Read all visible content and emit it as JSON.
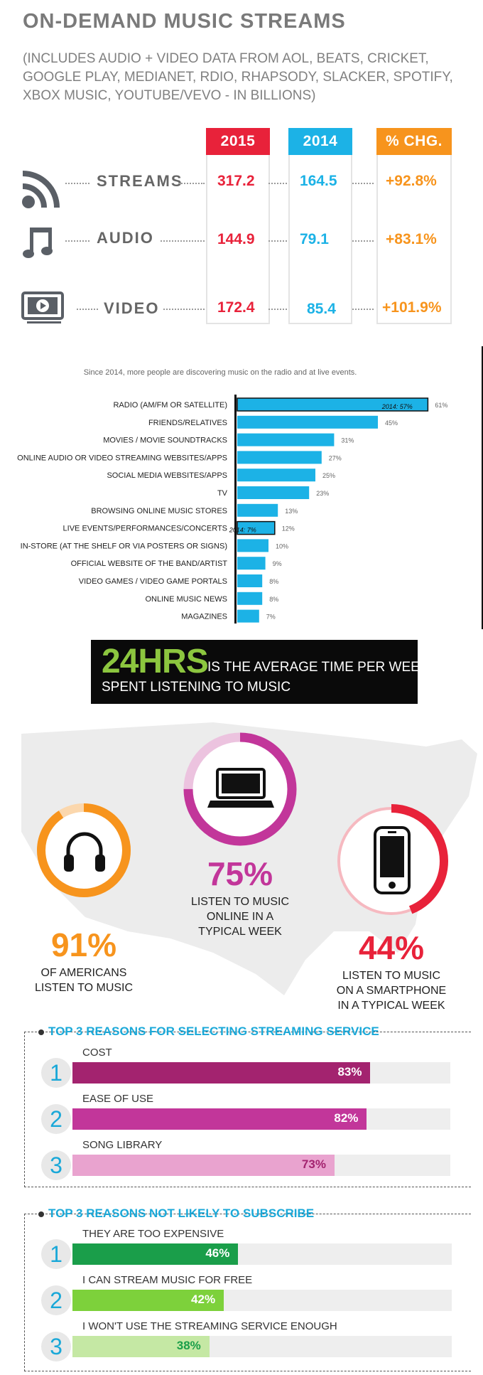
{
  "streams": {
    "title": "ON-DEMAND MUSIC STREAMS",
    "subtitle": "(INCLUDES AUDIO + VIDEO DATA FROM AOL, BEATS, CRICKET, GOOGLE PLAY, MEDIANET, RDIO, RHAPSODY, SLACKER, SPOTIFY, XBOX MUSIC, YOUTUBE/VEVO - IN BILLIONS)",
    "columns": [
      {
        "label": "2015",
        "color": "#e8223a"
      },
      {
        "label": "2014",
        "color": "#1cb2e6"
      },
      {
        "label": "% CHG.",
        "color": "#f7941d"
      }
    ],
    "rows": [
      {
        "label": "STREAMS",
        "icon": "rss-icon",
        "v2015": "317.2",
        "v2014": "164.5",
        "chg": "+92.8%"
      },
      {
        "label": "AUDIO",
        "icon": "music-note-icon",
        "v2015": "144.9",
        "v2014": "79.1",
        "chg": "+83.1%"
      },
      {
        "label": "VIDEO",
        "icon": "video-monitor-icon",
        "v2015": "172.4",
        "v2014": "85.4",
        "chg": "+101.9%"
      }
    ]
  },
  "discovery": {
    "caption": "Since 2014, more people are discovering music on the radio and at live events."
  },
  "banner": {
    "big": "24HRS",
    "line1": "IS THE AVERAGE TIME PER WEEK",
    "line2": "SPENT LISTENING TO MUSIC",
    "accent": "#8cc63f"
  },
  "rings": [
    {
      "pct_label": "91%",
      "value": 91,
      "color": "#f7941d",
      "icon": "headphones-icon",
      "desc": [
        "OF AMERICANS",
        "LISTEN TO MUSIC"
      ]
    },
    {
      "pct_label": "75%",
      "value": 75,
      "color": "#c2369a",
      "icon": "laptop-icon",
      "desc": [
        "LISTEN TO MUSIC",
        "ONLINE IN A",
        "TYPICAL WEEK"
      ]
    },
    {
      "pct_label": "44%",
      "value": 44,
      "color": "#e8223a",
      "icon": "smartphone-icon",
      "desc": [
        "LISTEN TO MUSIC",
        "ON A SMARTPHONE",
        "IN A TYPICAL WEEK"
      ]
    }
  ],
  "reasons_select": {
    "title": "TOP 3 REASONS FOR SELECTING STREAMING SERVICE",
    "items": [
      {
        "num": "1",
        "label": "COST",
        "pct_label": "83%",
        "value": 83,
        "color": "#a3236f",
        "text_color": "#ffffff"
      },
      {
        "num": "2",
        "label": "EASE OF USE",
        "pct_label": "82%",
        "value": 82,
        "color": "#c2369a",
        "text_color": "#ffffff"
      },
      {
        "num": "3",
        "label": "SONG LIBRARY",
        "pct_label": "73%",
        "value": 73,
        "color": "#e9a3cf",
        "text_color": "#a3236f"
      }
    ]
  },
  "reasons_not": {
    "title": "TOP 3 REASONS NOT LIKELY TO SUBSCRIBE",
    "items": [
      {
        "num": "1",
        "label": "THEY ARE TOO EXPENSIVE",
        "pct_label": "46%",
        "value": 46,
        "color": "#1a9e4a",
        "text_color": "#ffffff"
      },
      {
        "num": "2",
        "label": "I CAN STREAM MUSIC FOR FREE",
        "pct_label": "42%",
        "value": 42,
        "color": "#7dd13b",
        "text_color": "#ffffff"
      },
      {
        "num": "3",
        "label": "I WON'T USE THE STREAMING SERVICE ENOUGH",
        "pct_label": "38%",
        "value": 38,
        "color": "#c5e8a4",
        "text_color": "#1a9e4a"
      }
    ]
  },
  "chart_data": {
    "type": "bar",
    "title": "",
    "categories": [
      "RADIO (AM/FM OR SATELLITE)",
      "FRIENDS/RELATIVES",
      "MOVIES / MOVIE SOUNDTRACKS",
      "ONLINE AUDIO OR VIDEO STREAMING WEBSITES/APPS",
      "SOCIAL MEDIA WEBSITES/APPS",
      "TV",
      "BROWSING ONLINE MUSIC STORES",
      "LIVE EVENTS/PERFORMANCES/CONCERTS",
      "IN-STORE (AT THE SHELF OR VIA POSTERS OR SIGNS)",
      "OFFICIAL WEBSITE OF THE BAND/ARTIST",
      "VIDEO GAMES / VIDEO GAME PORTALS",
      "ONLINE MUSIC NEWS",
      "MAGAZINES"
    ],
    "values": [
      61,
      45,
      31,
      27,
      25,
      23,
      13,
      12,
      10,
      9,
      8,
      8,
      7
    ],
    "value_labels": [
      "61%",
      "45%",
      "31%",
      "27%",
      "25%",
      "23%",
      "13%",
      "12%",
      "10%",
      "9%",
      "8%",
      "8%",
      "7%"
    ],
    "previous": [
      {
        "category": "RADIO (AM/FM OR SATELLITE)",
        "value": 57,
        "label": "2014: 57%"
      },
      {
        "category": "LIVE EVENTS/PERFORMANCES/CONCERTS",
        "value": 7,
        "label": "2014: 7%"
      }
    ],
    "orientation": "horizontal",
    "xlim": [
      0,
      65
    ],
    "bar_color": "#1cb2e6"
  }
}
